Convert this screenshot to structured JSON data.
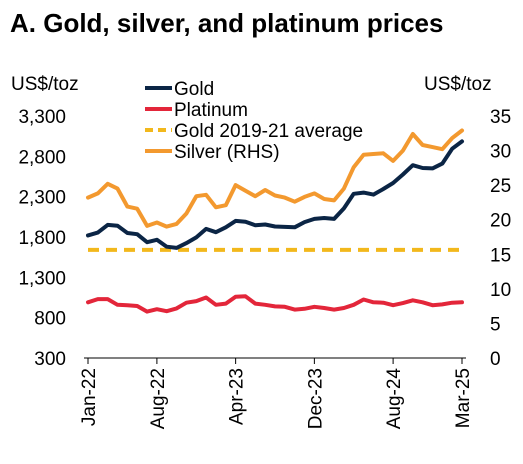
{
  "chart_data": {
    "type": "line",
    "title": "A. Gold, silver, and platinum prices",
    "left_axis": {
      "unit": "US$/toz",
      "min": 300,
      "max": 3300,
      "ticks": [
        300,
        800,
        1300,
        1800,
        2300,
        2800,
        3300
      ],
      "tick_labels": [
        "300",
        "800",
        "1,300",
        "1,800",
        "2,300",
        "2,800",
        "3,300"
      ]
    },
    "right_axis": {
      "unit": "US$/toz",
      "min": 0,
      "max": 35,
      "ticks": [
        0,
        5,
        10,
        15,
        20,
        25,
        30,
        35
      ],
      "tick_labels": [
        "0",
        "5",
        "10",
        "15",
        "20",
        "25",
        "30",
        "35"
      ]
    },
    "x_tick_labels": [
      "Jan-22",
      "Aug-22",
      "Apr-23",
      "Dec-23",
      "Aug-24",
      "Mar-25"
    ],
    "x_tick_indices": [
      0,
      7,
      15,
      23,
      31,
      38
    ],
    "x": [
      "Jan-22",
      "Feb-22",
      "Mar-22",
      "Apr-22",
      "May-22",
      "Jun-22",
      "Jul-22",
      "Aug-22",
      "Sep-22",
      "Oct-22",
      "Nov-22",
      "Dec-22",
      "Jan-23",
      "Feb-23",
      "Mar-23",
      "Apr-23",
      "May-23",
      "Jun-23",
      "Jul-23",
      "Aug-23",
      "Sep-23",
      "Oct-23",
      "Nov-23",
      "Dec-23",
      "Jan-24",
      "Feb-24",
      "Mar-24",
      "Apr-24",
      "May-24",
      "Jun-24",
      "Jul-24",
      "Aug-24",
      "Sep-24",
      "Oct-24",
      "Nov-24",
      "Dec-24",
      "Jan-25",
      "Feb-25",
      "Mar-25"
    ],
    "grid": false,
    "legend_position": "top-left",
    "series": [
      {
        "name": "Gold",
        "axis": "left",
        "color": "#0b2545",
        "dash": "solid",
        "values": [
          1820,
          1855,
          1950,
          1940,
          1850,
          1835,
          1735,
          1765,
          1680,
          1665,
          1725,
          1795,
          1900,
          1860,
          1920,
          2000,
          1990,
          1945,
          1955,
          1930,
          1925,
          1920,
          1985,
          2025,
          2035,
          2025,
          2155,
          2335,
          2350,
          2325,
          2395,
          2470,
          2575,
          2690,
          2655,
          2650,
          2710,
          2895,
          2985
        ]
      },
      {
        "name": "Platinum",
        "axis": "left",
        "color": "#e3263a",
        "dash": "solid",
        "values": [
          990,
          1030,
          1030,
          960,
          955,
          945,
          875,
          905,
          880,
          915,
          985,
          1005,
          1050,
          960,
          975,
          1060,
          1065,
          975,
          960,
          940,
          935,
          900,
          910,
          935,
          920,
          900,
          920,
          960,
          1025,
          990,
          985,
          955,
          980,
          1015,
          990,
          955,
          965,
          985,
          990
        ]
      },
      {
        "name": "Gold 2019-21 average",
        "axis": "left",
        "color": "#f2b81c",
        "dash": "dashed",
        "values": [
          1640,
          1640,
          1640,
          1640,
          1640,
          1640,
          1640,
          1640,
          1640,
          1640,
          1640,
          1640,
          1640,
          1640,
          1640,
          1640,
          1640,
          1640,
          1640,
          1640,
          1640,
          1640,
          1640,
          1640,
          1640,
          1640,
          1640,
          1640,
          1640,
          1640,
          1640,
          1640,
          1640,
          1640,
          1640,
          1640,
          1640,
          1640,
          1640
        ]
      },
      {
        "name": "Silver (RHS)",
        "axis": "right",
        "color": "#f3992f",
        "dash": "solid",
        "values": [
          23.2,
          23.8,
          25.2,
          24.5,
          21.9,
          21.6,
          19.1,
          19.6,
          19.0,
          19.4,
          20.9,
          23.4,
          23.6,
          21.8,
          22.1,
          25.0,
          24.2,
          23.4,
          24.3,
          23.5,
          23.2,
          22.6,
          23.3,
          23.8,
          23.0,
          22.8,
          24.5,
          27.6,
          29.4,
          29.5,
          29.6,
          28.5,
          30.0,
          32.4,
          30.8,
          30.5,
          30.2,
          31.8,
          32.9
        ]
      }
    ]
  }
}
